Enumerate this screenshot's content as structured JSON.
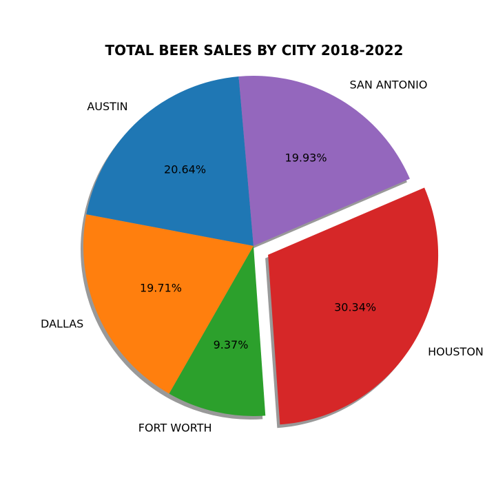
{
  "chart_data": {
    "type": "pie",
    "title": "TOTAL BEER SALES BY CITY 2018-2022",
    "categories": [
      "AUSTIN",
      "DALLAS",
      "FORT WORTH",
      "HOUSTON",
      "SAN ANTONIO"
    ],
    "values": [
      20.64,
      19.71,
      9.37,
      30.34,
      19.93
    ],
    "percent_labels": [
      "20.64%",
      "19.71%",
      "9.37%",
      "30.34%",
      "19.93%"
    ],
    "colors": [
      "#1f77b4",
      "#ff7f0e",
      "#2ca02c",
      "#d62728",
      "#9467bd"
    ],
    "explode": [
      0,
      0,
      0,
      0.1,
      0
    ],
    "shadow": true,
    "start_angle_deg": 95,
    "direction": "counterclockwise"
  }
}
